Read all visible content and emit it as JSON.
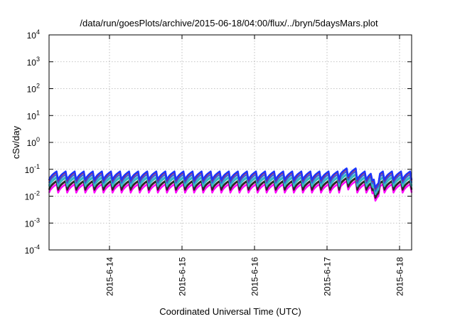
{
  "chart_data": {
    "type": "line",
    "title": "/data/run/goesPlots/archive/2015-06-18/04:00/flux/../bryn/5daysMars.plot",
    "xlabel": "Coordinated Universal Time (UTC)",
    "ylabel": "cSv/day",
    "y_scale": "log",
    "ylim": [
      0.0001,
      10000
    ],
    "grid": true,
    "legend": "none",
    "xlim": [
      "2015-06-13T04:00",
      "2015-06-18T04:00"
    ],
    "x_ticks": [
      "2015-6-14",
      "2015-6-15",
      "2015-6-16",
      "2015-6-17",
      "2015-6-18"
    ],
    "y_ticks": [
      {
        "base": "10",
        "exp": "-4"
      },
      {
        "base": "10",
        "exp": "-3"
      },
      {
        "base": "10",
        "exp": "-2"
      },
      {
        "base": "10",
        "exp": "-1"
      },
      {
        "base": "10",
        "exp": "0"
      },
      {
        "base": "10",
        "exp": "1"
      },
      {
        "base": "10",
        "exp": "2"
      },
      {
        "base": "10",
        "exp": "3"
      },
      {
        "base": "10",
        "exp": "4"
      }
    ],
    "pattern": {
      "cycle_hours": 3,
      "drop_factor": 0.45,
      "anomalies": [
        {
          "time": "2015-06-17T07:00",
          "peak_factor": 1.3
        },
        {
          "time": "2015-06-17T16:00",
          "dip_factor": 0.5
        }
      ]
    },
    "series": [
      {
        "color": "#ff00ff",
        "peak": 0.03
      },
      {
        "color": "#7a0040",
        "peak": 0.038
      },
      {
        "color": "#2a2a2a",
        "peak": 0.04
      },
      {
        "color": "#19b8b8",
        "peak": 0.052
      },
      {
        "color": "#3eb8c0",
        "peak": 0.056
      },
      {
        "color": "#2f5fe0",
        "peak": 0.07
      },
      {
        "color": "#e0151e",
        "peak": 0.085
      },
      {
        "color": "#1a36ff",
        "peak": 0.09
      }
    ]
  }
}
